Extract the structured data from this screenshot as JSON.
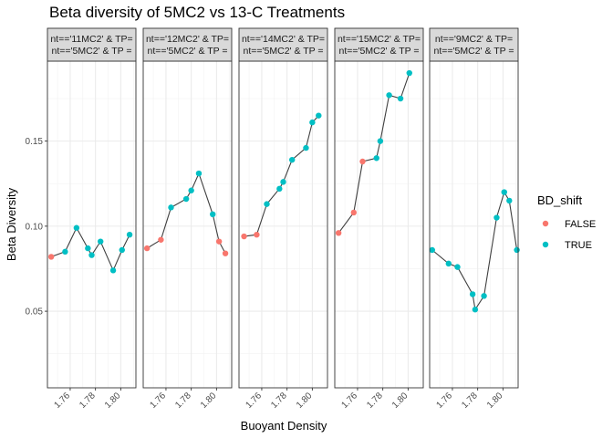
{
  "chart_data": {
    "type": "scatter",
    "title": "Beta diversity of 5MC2 vs 13-C Treatments",
    "xlabel": "Buoyant Density",
    "ylabel": "Beta Diversity",
    "xlim": [
      1.742,
      1.812
    ],
    "ylim": [
      0.005,
      0.197
    ],
    "x_ticks": [
      1.76,
      1.78,
      1.8
    ],
    "x_tick_labels": [
      "1.76",
      "1.78",
      "1.80"
    ],
    "y_ticks": [
      0.05,
      0.1,
      0.15
    ],
    "y_tick_labels": [
      "0.05",
      "0.10",
      "0.15"
    ],
    "grid": true,
    "legend": {
      "title": "BD_shift",
      "position": "right",
      "entries": [
        {
          "label": "FALSE",
          "color": "#F8766D"
        },
        {
          "label": "TRUE",
          "color": "#00BFC4"
        }
      ]
    },
    "panels": [
      {
        "strip_line1": "nt=='11MC2' & TP=",
        "strip_line2": "nt=='5MC2' & TP =",
        "points": [
          {
            "x": 1.745,
            "y": 0.082,
            "bd_shift": false
          },
          {
            "x": 1.756,
            "y": 0.085,
            "bd_shift": true
          },
          {
            "x": 1.765,
            "y": 0.099,
            "bd_shift": true
          },
          {
            "x": 1.774,
            "y": 0.087,
            "bd_shift": true
          },
          {
            "x": 1.777,
            "y": 0.083,
            "bd_shift": true
          },
          {
            "x": 1.784,
            "y": 0.091,
            "bd_shift": true
          },
          {
            "x": 1.794,
            "y": 0.074,
            "bd_shift": true
          },
          {
            "x": 1.801,
            "y": 0.086,
            "bd_shift": true
          },
          {
            "x": 1.807,
            "y": 0.095,
            "bd_shift": true
          }
        ]
      },
      {
        "strip_line1": "nt=='12MC2' & TP=",
        "strip_line2": "nt=='5MC2' & TP =",
        "points": [
          {
            "x": 1.745,
            "y": 0.087,
            "bd_shift": false
          },
          {
            "x": 1.756,
            "y": 0.092,
            "bd_shift": false
          },
          {
            "x": 1.764,
            "y": 0.111,
            "bd_shift": true
          },
          {
            "x": 1.776,
            "y": 0.116,
            "bd_shift": true
          },
          {
            "x": 1.78,
            "y": 0.121,
            "bd_shift": true
          },
          {
            "x": 1.786,
            "y": 0.131,
            "bd_shift": true
          },
          {
            "x": 1.797,
            "y": 0.107,
            "bd_shift": true
          },
          {
            "x": 1.802,
            "y": 0.091,
            "bd_shift": false
          },
          {
            "x": 1.807,
            "y": 0.084,
            "bd_shift": false
          }
        ]
      },
      {
        "strip_line1": "nt=='14MC2' & TP=",
        "strip_line2": "nt=='5MC2' & TP =",
        "points": [
          {
            "x": 1.746,
            "y": 0.094,
            "bd_shift": false
          },
          {
            "x": 1.756,
            "y": 0.095,
            "bd_shift": false
          },
          {
            "x": 1.764,
            "y": 0.113,
            "bd_shift": true
          },
          {
            "x": 1.774,
            "y": 0.122,
            "bd_shift": true
          },
          {
            "x": 1.777,
            "y": 0.126,
            "bd_shift": true
          },
          {
            "x": 1.784,
            "y": 0.139,
            "bd_shift": true
          },
          {
            "x": 1.795,
            "y": 0.146,
            "bd_shift": true
          },
          {
            "x": 1.8,
            "y": 0.161,
            "bd_shift": true
          },
          {
            "x": 1.805,
            "y": 0.165,
            "bd_shift": true
          }
        ]
      },
      {
        "strip_line1": "nt=='15MC2' & TP=",
        "strip_line2": "nt=='5MC2' & TP =",
        "points": [
          {
            "x": 1.745,
            "y": 0.096,
            "bd_shift": false
          },
          {
            "x": 1.757,
            "y": 0.108,
            "bd_shift": false
          },
          {
            "x": 1.764,
            "y": 0.138,
            "bd_shift": false
          },
          {
            "x": 1.775,
            "y": 0.14,
            "bd_shift": true
          },
          {
            "x": 1.778,
            "y": 0.15,
            "bd_shift": true
          },
          {
            "x": 1.785,
            "y": 0.177,
            "bd_shift": true
          },
          {
            "x": 1.794,
            "y": 0.175,
            "bd_shift": true
          },
          {
            "x": 1.801,
            "y": 0.19,
            "bd_shift": true
          }
        ]
      },
      {
        "strip_line1": "nt=='9MC2' & TP=",
        "strip_line2": "nt=='5MC2' & TP =",
        "points": [
          {
            "x": 1.744,
            "y": 0.086,
            "bd_shift": true
          },
          {
            "x": 1.757,
            "y": 0.078,
            "bd_shift": true
          },
          {
            "x": 1.764,
            "y": 0.076,
            "bd_shift": true
          },
          {
            "x": 1.776,
            "y": 0.06,
            "bd_shift": true
          },
          {
            "x": 1.778,
            "y": 0.051,
            "bd_shift": true
          },
          {
            "x": 1.785,
            "y": 0.059,
            "bd_shift": true
          },
          {
            "x": 1.795,
            "y": 0.105,
            "bd_shift": true
          },
          {
            "x": 1.801,
            "y": 0.12,
            "bd_shift": true
          },
          {
            "x": 1.805,
            "y": 0.115,
            "bd_shift": true
          },
          {
            "x": 1.811,
            "y": 0.086,
            "bd_shift": true
          }
        ]
      }
    ]
  }
}
